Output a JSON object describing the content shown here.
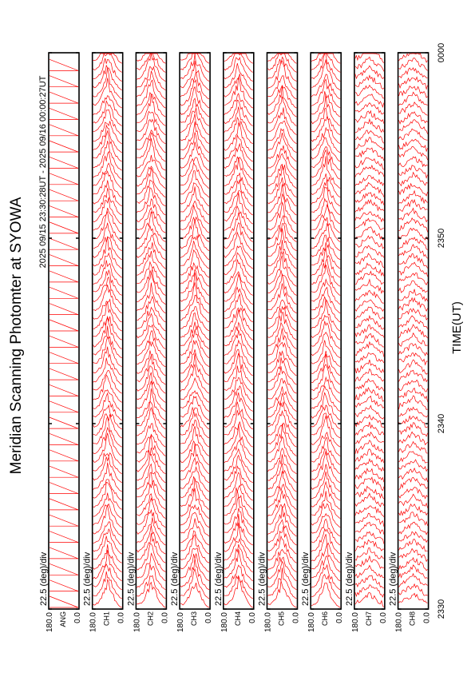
{
  "chart_data": {
    "type": "line",
    "title": "Meridian Scanning Photomter at SYOWA",
    "subtitle": "2025 09/15 23:30:28UT - 2025 09/16 00:00:27UT",
    "xlabel": "TIME(UT)",
    "x_ticks": [
      "2330",
      "2340",
      "2350",
      "0000"
    ],
    "y_tick_top": "180.0",
    "y_tick_bottom": "0.0",
    "scale_label": "22.5 (deg)/div",
    "panels": [
      {
        "channel": "ANG",
        "profile": "angle"
      },
      {
        "channel": "CH1",
        "profile": "arc"
      },
      {
        "channel": "CH2",
        "profile": "arc"
      },
      {
        "channel": "CH3",
        "profile": "arc"
      },
      {
        "channel": "CH4",
        "profile": "arc"
      },
      {
        "channel": "CH5",
        "profile": "arc"
      },
      {
        "channel": "CH6",
        "profile": "arc"
      },
      {
        "channel": "CH7",
        "profile": "flat"
      },
      {
        "channel": "CH8",
        "profile": "flat"
      }
    ],
    "series_color": "#ff0000",
    "grid": false,
    "orientation": "rotated-90"
  }
}
